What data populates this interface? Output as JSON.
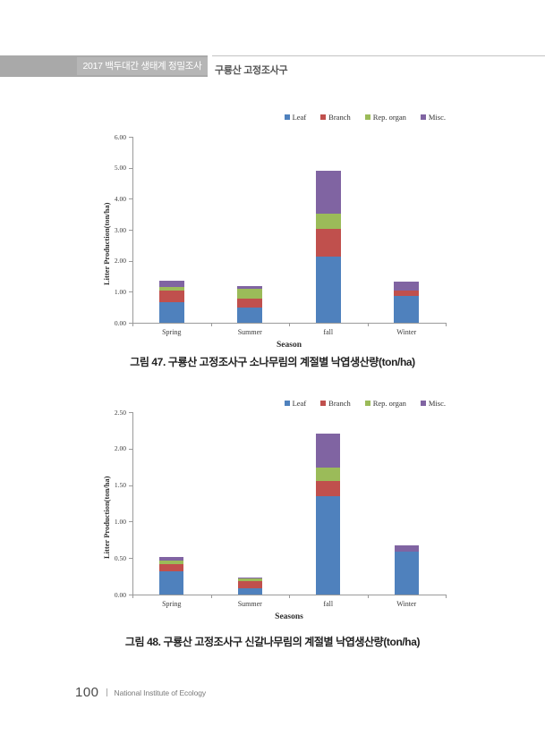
{
  "header": {
    "badge": "2017 백두대간 생태계 정밀조사",
    "section": "구룡산 고정조사구"
  },
  "colors": {
    "leaf": "#4F81BD",
    "branch": "#C0504D",
    "rep_organ": "#9BBB59",
    "misc": "#8064A2",
    "axis": "#9a9a9a"
  },
  "chart_data": [
    {
      "type": "bar",
      "stacked": true,
      "caption": "그림 47. 구룡산 고정조사구 소나무림의 계절별 낙엽생산량(ton/ha)",
      "categories": [
        "Spring",
        "Summer",
        "fall",
        "Winter"
      ],
      "series": [
        {
          "name": "Leaf",
          "color": "#4F81BD",
          "values": [
            0.65,
            0.48,
            2.13,
            0.86
          ]
        },
        {
          "name": "Branch",
          "color": "#C0504D",
          "values": [
            0.38,
            0.31,
            0.9,
            0.17
          ]
        },
        {
          "name": "Rep. organ",
          "color": "#9BBB59",
          "values": [
            0.12,
            0.3,
            0.5,
            0.0
          ]
        },
        {
          "name": "Misc.",
          "color": "#8064A2",
          "values": [
            0.22,
            0.09,
            1.37,
            0.29
          ]
        }
      ],
      "xlabel": "Season",
      "ylabel": "Litter Production(ton/ha)",
      "ylim": [
        0,
        6.0
      ],
      "ytick_step": 1.0,
      "grid": false,
      "legend_position": "top-right"
    },
    {
      "type": "bar",
      "stacked": true,
      "caption": "그림 48. 구룡산 고정조사구 신갈나무림의 계절별 낙엽생산량(ton/ha)",
      "categories": [
        "Spring",
        "Summer",
        "fall",
        "Winter"
      ],
      "series": [
        {
          "name": "Leaf",
          "color": "#4F81BD",
          "values": [
            0.32,
            0.09,
            1.35,
            0.59
          ]
        },
        {
          "name": "Branch",
          "color": "#C0504D",
          "values": [
            0.1,
            0.09,
            0.21,
            0.0
          ]
        },
        {
          "name": "Rep. organ",
          "color": "#9BBB59",
          "values": [
            0.05,
            0.04,
            0.18,
            0.0
          ]
        },
        {
          "name": "Misc.",
          "color": "#8064A2",
          "values": [
            0.05,
            0.01,
            0.46,
            0.08
          ]
        }
      ],
      "xlabel": "Seasons",
      "ylabel": "Litter Production(ton/ha)",
      "ylim": [
        0,
        2.5
      ],
      "ytick_step": 0.5,
      "grid": false,
      "legend_position": "top-right"
    }
  ],
  "footer": {
    "page_number": "100",
    "org": "National Institute of Ecology"
  }
}
